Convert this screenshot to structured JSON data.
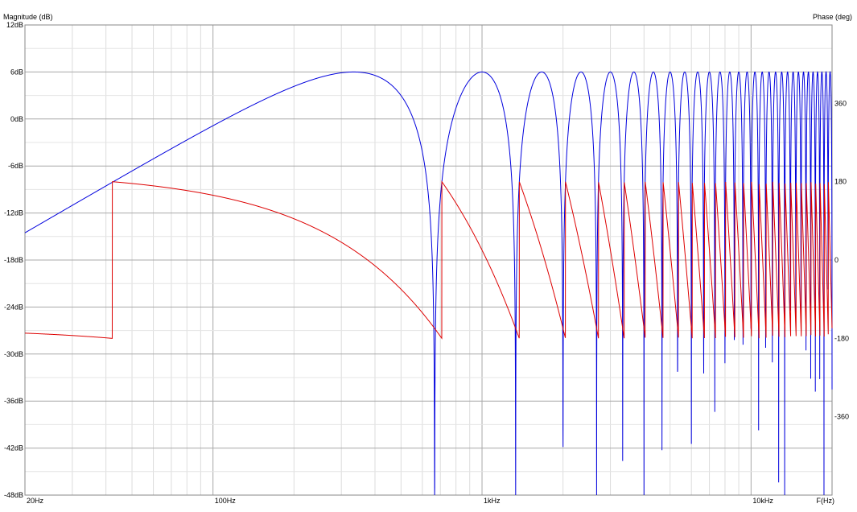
{
  "chart_data": {
    "type": "line",
    "title": "",
    "left_axis": {
      "title": "Magnitude (dB)",
      "min": -48,
      "max": 12,
      "step": 6,
      "tick_labels": [
        "12dB",
        "6dB",
        "0dB",
        "-6dB",
        "-12dB",
        "-18dB",
        "-24dB",
        "-30dB",
        "-36dB",
        "-42dB",
        "-48dB"
      ]
    },
    "right_axis": {
      "title": "Phase (deg)",
      "min": -540,
      "max": 540,
      "tick_values": [
        360,
        180,
        0,
        -180,
        -360
      ],
      "tick_labels": [
        "360",
        "180",
        "0",
        "-180",
        "-360"
      ]
    },
    "x_axis": {
      "scale": "log",
      "min": 20,
      "max": 20000,
      "unit_label": "F(Hz)",
      "tick_values": [
        20,
        100,
        1000,
        10000
      ],
      "tick_labels": [
        "20Hz",
        "100Hz",
        "1kHz",
        "10kHz"
      ]
    },
    "grid": true,
    "series": [
      {
        "id": "magnitude",
        "axis": "left",
        "color": "#0000dd",
        "model": "comb_magnitude",
        "peak_db": 6,
        "comb_base_hz": 333.3,
        "notch_freqs_hz": [
          666.7,
          1333,
          2000,
          2667,
          3333,
          4000
        ]
      },
      {
        "id": "phase",
        "axis": "right",
        "color": "#dd0000",
        "model": "wrapped_phase",
        "phase_at_20hz_deg": -168,
        "wrap_max_deg": 180,
        "wrap_min_deg": -180,
        "wrap_period_hz": 666.7
      }
    ]
  }
}
